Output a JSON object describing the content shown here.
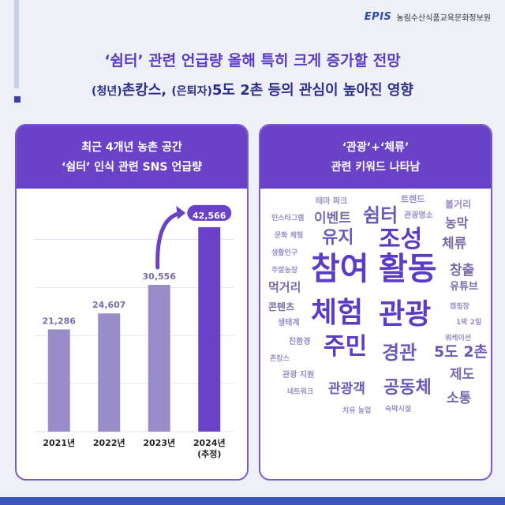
{
  "org": {
    "logo_mark": "EPIS",
    "name": "농림수산식품교육문화정보원"
  },
  "headline": {
    "line1": "‘쉼터’ 관련 언급량 올해 특히 크게 증가할 전망",
    "line2_a": "(청년)",
    "line2_b": "촌캉스, ",
    "line2_c": "(은퇴자)",
    "line2_d": "5도 2촌 등의 관심이 높아진 영향"
  },
  "left_panel": {
    "title_line1": "최근 4개년 농촌 공간",
    "title_line2": "‘쉼터’ 인식 관련 SNS 언급량"
  },
  "right_panel": {
    "title_line1": "‘관광’+‘체류’",
    "title_line2": "관련 키워드 나타남"
  },
  "chart_data": {
    "type": "bar",
    "title": "최근 4개년 농촌 공간 ‘쉼터’ 인식 관련 SNS 언급량",
    "categories": [
      "2021년",
      "2022년",
      "2023년",
      "2024년\n(추정)"
    ],
    "values": [
      21286,
      24607,
      30556,
      42566
    ],
    "value_labels": [
      "21,286",
      "24,607",
      "30,556",
      "42,566"
    ],
    "ylim": [
      0,
      46000
    ],
    "grid": true,
    "colors": [
      "#9a8cc6",
      "#9a8cc6",
      "#9a8cc6",
      "#6a42c8"
    ]
  },
  "word_cloud": [
    {
      "text": "테마 파크",
      "size": 10,
      "color": "#9a8cc6"
    },
    {
      "text": "트렌드",
      "size": 11,
      "color": "#9a8cc6"
    },
    {
      "text": "볼거리",
      "size": 12,
      "color": "#9a8cc6"
    },
    {
      "text": "인스타그램",
      "size": 9,
      "color": "#9a8cc6"
    },
    {
      "text": "이벤트",
      "size": 17,
      "color": "#7a6aa8"
    },
    {
      "text": "쉼터",
      "size": 24,
      "color": "#6a5ab8"
    },
    {
      "text": "관광명소",
      "size": 10,
      "color": "#9a8cc6"
    },
    {
      "text": "농막",
      "size": 16,
      "color": "#7a6aa8"
    },
    {
      "text": "문화 체험",
      "size": 9,
      "color": "#9a8cc6"
    },
    {
      "text": "유지",
      "size": 22,
      "color": "#6a5ab8"
    },
    {
      "text": "조성",
      "size": 30,
      "color": "#5b3cc4"
    },
    {
      "text": "체류",
      "size": 17,
      "color": "#7a6aa8"
    },
    {
      "text": "생활인구",
      "size": 9,
      "color": "#9a8cc6"
    },
    {
      "text": "참여",
      "size": 40,
      "color": "#5b3cc4"
    },
    {
      "text": "활동",
      "size": 40,
      "color": "#5b3cc4"
    },
    {
      "text": "주말농장",
      "size": 9,
      "color": "#9a8cc6"
    },
    {
      "text": "창출",
      "size": 17,
      "color": "#7a6aa8"
    },
    {
      "text": "먹거리",
      "size": 15,
      "color": "#7a6aa8"
    },
    {
      "text": "유튜브",
      "size": 13,
      "color": "#7a6aa8"
    },
    {
      "text": "콘텐츠",
      "size": 12,
      "color": "#7a6aa8"
    },
    {
      "text": "체험",
      "size": 36,
      "color": "#5b3cc4"
    },
    {
      "text": "관광",
      "size": 36,
      "color": "#5b3cc4"
    },
    {
      "text": "캠핑장",
      "size": 9,
      "color": "#9a8cc6"
    },
    {
      "text": "생태계",
      "size": 10,
      "color": "#9a8cc6"
    },
    {
      "text": "1박 2일",
      "size": 9,
      "color": "#9a8cc6"
    },
    {
      "text": "워케이션",
      "size": 9,
      "color": "#9a8cc6"
    },
    {
      "text": "친환경",
      "size": 10,
      "color": "#9a8cc6"
    },
    {
      "text": "주민",
      "size": 30,
      "color": "#5b3cc4"
    },
    {
      "text": "경관",
      "size": 24,
      "color": "#6a5ab8"
    },
    {
      "text": "5도 2촌",
      "size": 19,
      "color": "#6a5ab8"
    },
    {
      "text": "촌캉스",
      "size": 9,
      "color": "#9a8cc6"
    },
    {
      "text": "관광 지원",
      "size": 10,
      "color": "#9a8cc6"
    },
    {
      "text": "제도",
      "size": 17,
      "color": "#7a6aa8"
    },
    {
      "text": "네트워크",
      "size": 9,
      "color": "#9a8cc6"
    },
    {
      "text": "관광객",
      "size": 17,
      "color": "#6a5ab8"
    },
    {
      "text": "공동체",
      "size": 22,
      "color": "#6a5ab8"
    },
    {
      "text": "소통",
      "size": 17,
      "color": "#7a6aa8"
    },
    {
      "text": "치유 농업",
      "size": 9,
      "color": "#9a8cc6"
    },
    {
      "text": "숙박시설",
      "size": 9,
      "color": "#9a8cc6"
    }
  ]
}
